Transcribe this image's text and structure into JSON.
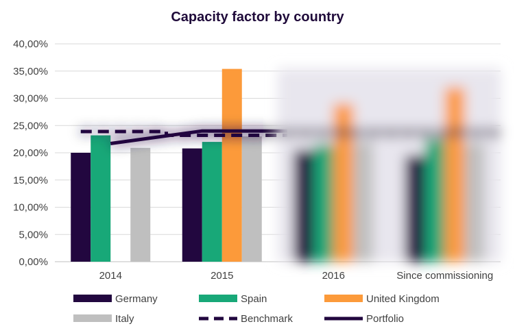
{
  "chart_data": {
    "type": "bar",
    "title": "Capacity factor by country",
    "categories": [
      "2014",
      "2015",
      "2016",
      "Since commissioning"
    ],
    "ylim": [
      0,
      40
    ],
    "y_ticks": [
      "0,00%",
      "5,00%",
      "10,00%",
      "15,00%",
      "20,00%",
      "25,00%",
      "30,00%",
      "35,00%",
      "40,00%"
    ],
    "grid": true,
    "legend_position": "bottom",
    "series": [
      {
        "name": "Germany",
        "kind": "bar",
        "color": "#22073f",
        "values": [
          20.0,
          20.8,
          20.5,
          19.5
        ]
      },
      {
        "name": "Spain",
        "kind": "bar",
        "color": "#18a878",
        "values": [
          23.2,
          22.0,
          21.5,
          22.5
        ]
      },
      {
        "name": "United Kingdom",
        "kind": "bar",
        "color": "#fc9a3a",
        "values": [
          null,
          35.4,
          29.0,
          32.0
        ]
      },
      {
        "name": "Italy",
        "kind": "bar",
        "color": "#bfbfbf",
        "values": [
          20.9,
          23.0,
          22.0,
          21.8
        ]
      },
      {
        "name": "Benchmark",
        "kind": "dashed-line",
        "color": "#22073f",
        "values": [
          23.9,
          23.2,
          23.2,
          23.2
        ]
      },
      {
        "name": "Portfolio",
        "kind": "line",
        "color": "#22073f",
        "values": [
          21.7,
          24.0,
          24.0,
          24.0
        ]
      }
    ],
    "blurred_region": "2016 and Since commissioning groups are blurred in the original"
  }
}
